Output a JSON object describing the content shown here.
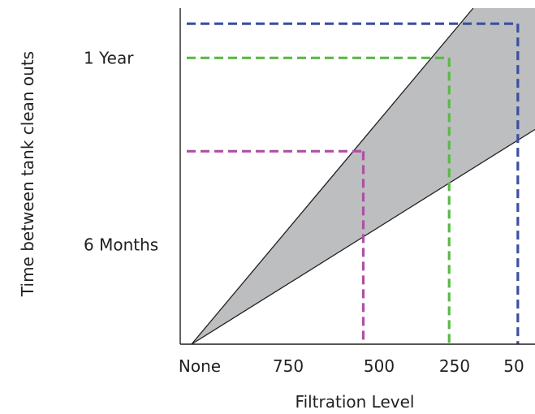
{
  "chart_data": {
    "type": "area",
    "title": "",
    "xlabel": "Filtration Level",
    "ylabel": "Time between tank clean outs",
    "x_categories": [
      "None",
      "750",
      "500",
      "250",
      "50"
    ],
    "y_tick_labels": [
      {
        "label": "6 Months",
        "months": 6
      },
      {
        "label": "1 Year",
        "months": 12
      }
    ],
    "ylim_months": [
      2.8,
      13.6
    ],
    "x_range_filtration": [
      1000,
      0
    ],
    "band": {
      "fill": "#bcbec0",
      "edge_color": "#231f20",
      "origin": {
        "filtration": 1000,
        "months": 2.8
      },
      "upper_edge": {
        "filtration": 180,
        "months": 13.6
      },
      "lower_edge": {
        "filtration": 0,
        "months": 9.7
      }
    },
    "series": [
      {
        "filtration": 500,
        "months": 9.0,
        "color": "#b04fa5"
      },
      {
        "filtration": 250,
        "months": 12.0,
        "color": "#5bb947"
      },
      {
        "filtration": 50,
        "months": 13.1,
        "color": "#3c4fa0"
      }
    ],
    "grid": false,
    "legend": "none"
  }
}
